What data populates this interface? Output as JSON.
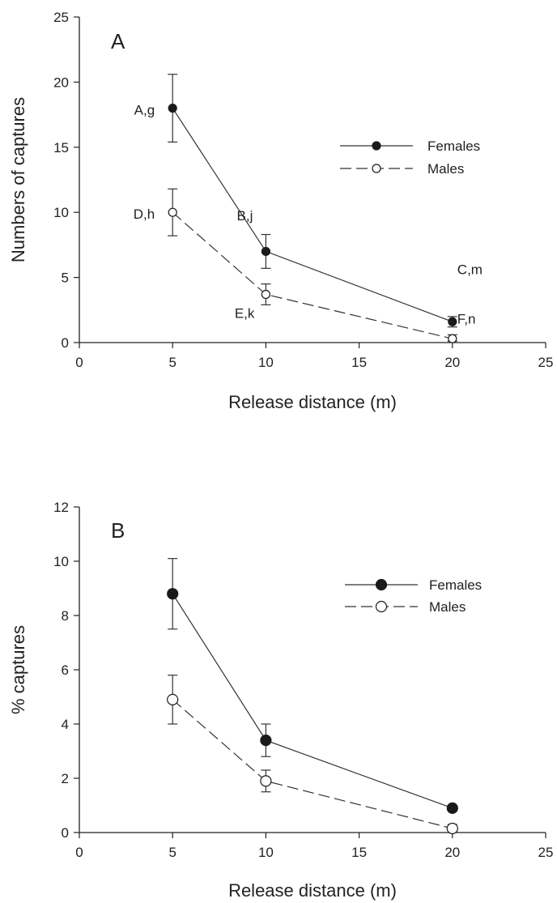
{
  "chart_data": [
    {
      "type": "line",
      "panel_label": "A",
      "xlabel": "Release distance (m)",
      "ylabel": "Numbers of captures",
      "xlim": [
        0,
        25
      ],
      "ylim": [
        0,
        25
      ],
      "xticks": [
        0,
        5,
        10,
        15,
        20,
        25
      ],
      "yticks": [
        0,
        5,
        10,
        15,
        20,
        25
      ],
      "x": [
        5,
        10,
        20
      ],
      "series": [
        {
          "name": "Females",
          "values": [
            18,
            7,
            1.6
          ],
          "err_hi": [
            20.6,
            8.3,
            2.0
          ],
          "err_lo": [
            15.4,
            5.7,
            1.2
          ],
          "marker": "filled",
          "line": "solid"
        },
        {
          "name": "Males",
          "values": [
            10,
            3.7,
            0.3
          ],
          "err_hi": [
            11.8,
            4.5,
            0.6
          ],
          "err_lo": [
            8.2,
            2.9,
            0.1
          ],
          "marker": "open",
          "line": "dashed"
        }
      ],
      "annotations": [
        {
          "text": "A,g",
          "x": 5,
          "y": 18
        },
        {
          "text": "D,h",
          "x": 5,
          "y": 10
        },
        {
          "text": "B,j",
          "x": 10,
          "y": 10
        },
        {
          "text": "E,k",
          "x": 10,
          "y": 2.9
        },
        {
          "text": "C,m",
          "x": 20,
          "y": 5
        },
        {
          "text": "F,n",
          "x": 20,
          "y": 1.6
        }
      ],
      "legend": "right"
    },
    {
      "type": "line",
      "panel_label": "B",
      "xlabel": "Release distance (m)",
      "ylabel": "% captures",
      "xlim": [
        0,
        25
      ],
      "ylim": [
        0,
        12
      ],
      "xticks": [
        0,
        5,
        10,
        15,
        20,
        25
      ],
      "yticks": [
        0,
        2,
        4,
        6,
        8,
        10,
        12
      ],
      "x": [
        5,
        10,
        20
      ],
      "series": [
        {
          "name": "Females",
          "values": [
            8.8,
            3.4,
            0.9
          ],
          "err_hi": [
            10.1,
            4.0,
            1.0
          ],
          "err_lo": [
            7.5,
            2.8,
            0.8
          ],
          "marker": "filled",
          "line": "solid"
        },
        {
          "name": "Males",
          "values": [
            4.9,
            1.9,
            0.15
          ],
          "err_hi": [
            5.8,
            2.3,
            0.3
          ],
          "err_lo": [
            4.0,
            1.5,
            0.0
          ],
          "marker": "open",
          "line": "dashed"
        }
      ],
      "annotations": [],
      "legend": "right"
    }
  ]
}
